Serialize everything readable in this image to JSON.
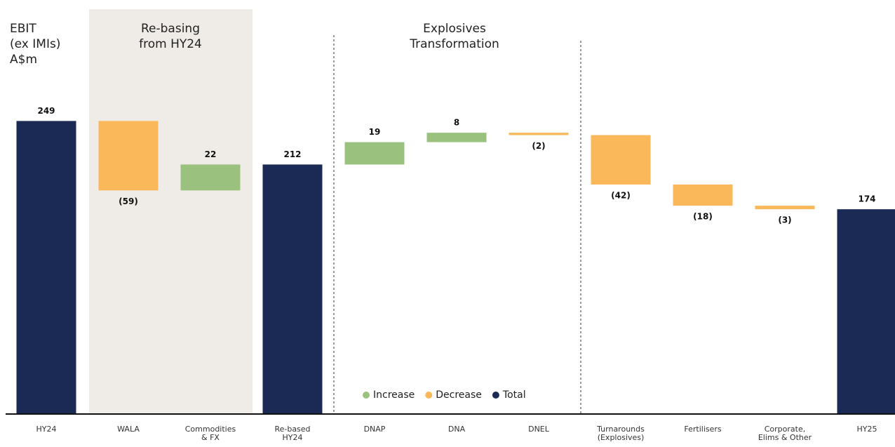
{
  "chart_data": {
    "type": "waterfall",
    "y_label": "EBIT\n(ex IMIs)\nA$m",
    "annotations": [
      "Re-basing\nfrom HY24",
      "Explosives\nTransformation"
    ],
    "categories": [
      "HY24",
      "WALA",
      "Commodities & FX",
      "Re-based HY24",
      "DNAP",
      "DNA",
      "DNEL",
      "Turnarounds (Explosives)",
      "Fertilisers",
      "Corporate, Elims & Other",
      "HY25"
    ],
    "values": [
      249,
      -59,
      22,
      212,
      19,
      8,
      -2,
      -42,
      -18,
      -3,
      174
    ],
    "value_labels": [
      "249",
      "(59)",
      "22",
      "212",
      "19",
      "8",
      "(2)",
      "(42)",
      "(18)",
      "(3)",
      "174"
    ],
    "colors": [
      "#1b2a55",
      "#fbb85a",
      "#9bc17f",
      "#1b2a55",
      "#9bc17f",
      "#9bc17f",
      "#fbb85a",
      "#fbb85a",
      "#fbb85a",
      "#fbb85a",
      "#1b2a55"
    ],
    "legend": [
      {
        "name": "Increase",
        "color": "#9bc17f"
      },
      {
        "name": "Decrease",
        "color": "#fbb85a"
      },
      {
        "name": "Total",
        "color": "#1b2a55"
      }
    ],
    "ylim": [
      0,
      350
    ]
  }
}
